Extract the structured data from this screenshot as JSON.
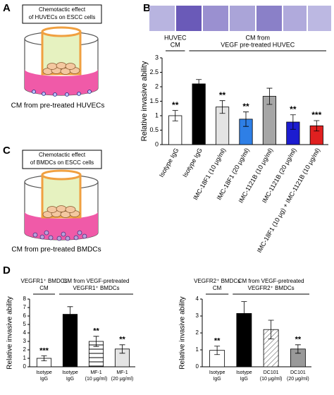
{
  "panels": {
    "a": "A",
    "b": "B",
    "c": "C",
    "d": "D"
  },
  "diagram_a": {
    "box": [
      "Chemotactic effect",
      "of HUVECs on ESCC cells"
    ],
    "caption": "CM from pre-treated HUVECs"
  },
  "diagram_c": {
    "box": [
      "Chemotactic effect",
      "of BMDCs on ESCC cells"
    ],
    "caption": "CM from pre-treated BMDCs"
  },
  "chart_data": [
    {
      "type": "bar",
      "ylabel": "Relative invasive ability",
      "groups": [
        [
          "HUVEC",
          "CM"
        ],
        [
          "CM from",
          "VEGF pre-treated HUVEC"
        ]
      ],
      "categories": [
        [
          "Isotype IgG"
        ],
        [
          "Isotype IgG"
        ],
        [
          "IMC-18F1 (10 μg/ml)"
        ],
        [
          "IMC-18F1 (20 μg/ml)"
        ],
        [
          "IMC-1121B (10 μg/ml)"
        ],
        [
          "IMC-1121B (20 μg/ml)"
        ],
        [
          "IMC-18F1 (10 μg) + IMC-1121B (10 μg/ml)"
        ]
      ],
      "values": [
        1.0,
        2.1,
        1.3,
        0.88,
        1.67,
        0.78,
        0.65
      ],
      "errors": [
        0.18,
        0.15,
        0.22,
        0.25,
        0.28,
        0.25,
        0.18
      ],
      "colors": [
        "#ffffff",
        "#000000",
        "#e4e4e4",
        "#2e7fe6",
        "#a6a6a6",
        "#1c1cd0",
        "#e02020"
      ],
      "hatch": [
        null,
        null,
        null,
        null,
        null,
        null,
        null
      ],
      "annotations": [
        "**",
        null,
        "**",
        "**",
        null,
        "**",
        "***"
      ],
      "ylim": [
        0,
        3
      ],
      "yticks": [
        0,
        0.5,
        1,
        1.5,
        2,
        2.5,
        3
      ]
    },
    {
      "type": "bar",
      "ylabel": "Relative invasive ability",
      "groups": [
        [
          "VEGFR1⁺ BMDCs",
          "CM"
        ],
        [
          "CM from VEGF-pretreated",
          "VEGFR1⁺ BMDCs"
        ]
      ],
      "categories": [
        [
          "Isotype",
          "IgG"
        ],
        [
          "Isotype",
          "IgG"
        ],
        [
          "MF-1",
          "(10 μg/ml)"
        ],
        [
          "MF-1",
          "(20 μg/ml)"
        ]
      ],
      "values": [
        1.0,
        6.2,
        3.0,
        2.1
      ],
      "errors": [
        0.3,
        0.9,
        0.6,
        0.5
      ],
      "colors": [
        "#ffffff",
        "#000000",
        "#ffffff",
        "#e4e4e4"
      ],
      "hatch": [
        null,
        null,
        "horizontal",
        null
      ],
      "annotations": [
        "***",
        null,
        "**",
        "**"
      ],
      "ylim": [
        0,
        8
      ],
      "yticks": [
        0,
        1,
        2,
        3,
        4,
        5,
        6,
        7,
        8
      ]
    },
    {
      "type": "bar",
      "ylabel": "Relative invasive ability",
      "groups": [
        [
          "VEGFR2⁺ BMDCs",
          "CM"
        ],
        [
          "CM from VEGF-pretreated",
          "VEGFR2⁺ BMDCs"
        ]
      ],
      "categories": [
        [
          "Isotype",
          "IgG"
        ],
        [
          "Isotype",
          "IgG"
        ],
        [
          "DC101",
          "(10 μg/ml)"
        ],
        [
          "DC101",
          "(20 μg/ml)"
        ]
      ],
      "values": [
        0.97,
        3.15,
        2.2,
        1.05
      ],
      "errors": [
        0.25,
        0.7,
        0.55,
        0.25
      ],
      "colors": [
        "#ffffff",
        "#000000",
        "#ffffff",
        "#999999"
      ],
      "hatch": [
        null,
        null,
        "diagonal",
        null
      ],
      "annotations": [
        "**",
        null,
        null,
        "**"
      ],
      "ylim": [
        0,
        4
      ],
      "yticks": [
        0,
        1,
        2,
        3,
        4
      ]
    }
  ]
}
